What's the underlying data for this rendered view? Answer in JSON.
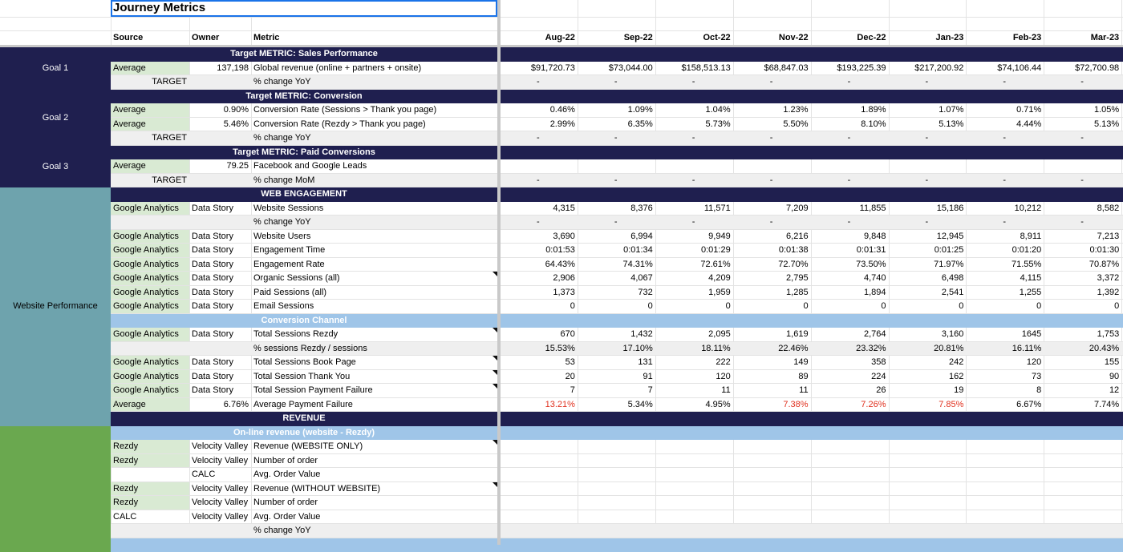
{
  "title": "Journey Metrics",
  "colors": {
    "navy": "#1f1f4f",
    "teal": "#6ea3ad",
    "green": "#6aa84f",
    "light_green": "#d9ead3",
    "gray_row": "#efefef",
    "sub_header": "#9fc5e8",
    "red_text": "#e0301e"
  },
  "headers": {
    "source": "Source",
    "owner": "Owner",
    "metric": "Metric",
    "months": [
      "Aug-22",
      "Sep-22",
      "Oct-22",
      "Nov-22",
      "Dec-22",
      "Jan-23",
      "Feb-23",
      "Mar-23"
    ]
  },
  "groups": [
    {
      "label": "Goal 1",
      "color": "navy"
    },
    {
      "label": "Goal 2",
      "color": "navy"
    },
    {
      "label": "Goal 3",
      "color": "navy"
    },
    {
      "label": "Website Performance",
      "color": "teal"
    },
    {
      "label": "",
      "color": "green"
    }
  ],
  "rows": [
    {
      "type": "section",
      "style": "navy",
      "label": "Target METRIC: Sales Performance"
    },
    {
      "type": "data",
      "source": "Average",
      "source_bg": "light_green",
      "owner": "137,198",
      "owner_align": "right",
      "metric": "Global revenue (online + partners + onsite)",
      "values": [
        "$91,720.73",
        "$73,044.00",
        "$158,513.13",
        "$68,847.03",
        "$193,225.39",
        "$217,200.92",
        "$74,106.44",
        "$72,700.98"
      ]
    },
    {
      "type": "target",
      "source": "TARGET",
      "metric": "% change YoY",
      "values": [
        "-",
        "-",
        "-",
        "-",
        "-",
        "-",
        "-",
        "-"
      ]
    },
    {
      "type": "section",
      "style": "navy",
      "label": "Target METRIC: Conversion"
    },
    {
      "type": "data",
      "source": "Average",
      "source_bg": "light_green",
      "owner": "0.90%",
      "owner_align": "right",
      "metric": "Conversion Rate (Sessions > Thank you page)",
      "values": [
        "0.46%",
        "1.09%",
        "1.04%",
        "1.23%",
        "1.89%",
        "1.07%",
        "0.71%",
        "1.05%"
      ]
    },
    {
      "type": "data",
      "source": "Average",
      "source_bg": "light_green",
      "owner": "5.46%",
      "owner_align": "right",
      "metric": "Conversion Rate (Rezdy > Thank you page)",
      "values": [
        "2.99%",
        "6.35%",
        "5.73%",
        "5.50%",
        "8.10%",
        "5.13%",
        "4.44%",
        "5.13%"
      ]
    },
    {
      "type": "target",
      "source": "TARGET",
      "metric": "% change YoY",
      "values": [
        "-",
        "-",
        "-",
        "-",
        "-",
        "-",
        "-",
        "-"
      ]
    },
    {
      "type": "section",
      "style": "navy",
      "label": "Target METRIC: Paid Conversions"
    },
    {
      "type": "data",
      "source": "Average",
      "source_bg": "light_green",
      "owner": "79.25",
      "owner_align": "right",
      "metric": "Facebook and Google Leads",
      "values": [
        "",
        "",
        "",
        "",
        "",
        "",
        "",
        ""
      ]
    },
    {
      "type": "target",
      "source": "TARGET",
      "metric": "% change MoM",
      "values": [
        "-",
        "-",
        "-",
        "-",
        "-",
        "-",
        "-",
        "-"
      ]
    },
    {
      "type": "section",
      "style": "navy",
      "label": "WEB ENGAGEMENT"
    },
    {
      "type": "data",
      "source": "Google Analytics",
      "source_bg": "light_green",
      "owner": "Data Story",
      "metric": "Website Sessions",
      "values": [
        "4,315",
        "8,376",
        "11,571",
        "7,209",
        "11,855",
        "15,186",
        "10,212",
        "8,582"
      ]
    },
    {
      "type": "target",
      "source": "",
      "metric": "% change YoY",
      "values": [
        "-",
        "-",
        "-",
        "-",
        "-",
        "-",
        "-",
        "-"
      ]
    },
    {
      "type": "data",
      "source": "Google Analytics",
      "source_bg": "light_green",
      "owner": "Data Story",
      "metric": "Website Users",
      "values": [
        "3,690",
        "6,994",
        "9,949",
        "6,216",
        "9,848",
        "12,945",
        "8,911",
        "7,213"
      ]
    },
    {
      "type": "data",
      "source": "Google Analytics",
      "source_bg": "light_green",
      "owner": "Data Story",
      "metric": "Engagement Time",
      "values": [
        "0:01:53",
        "0:01:34",
        "0:01:29",
        "0:01:38",
        "0:01:31",
        "0:01:25",
        "0:01:20",
        "0:01:30"
      ]
    },
    {
      "type": "data",
      "source": "Google Analytics",
      "source_bg": "light_green",
      "owner": "Data Story",
      "metric": "Engagement Rate",
      "values": [
        "64.43%",
        "74.31%",
        "72.61%",
        "72.70%",
        "73.50%",
        "71.97%",
        "71.55%",
        "70.87%"
      ]
    },
    {
      "type": "data",
      "source": "Google Analytics",
      "source_bg": "light_green",
      "owner": "Data Story",
      "metric": "Organic Sessions (all)",
      "note": true,
      "values": [
        "2,906",
        "4,067",
        "4,209",
        "2,795",
        "4,740",
        "6,498",
        "4,115",
        "3,372"
      ]
    },
    {
      "type": "data",
      "source": "Google Analytics",
      "source_bg": "light_green",
      "owner": "Data Story",
      "metric": "Paid Sessions (all)",
      "values": [
        "1,373",
        "732",
        "1,959",
        "1,285",
        "1,894",
        "2,541",
        "1,255",
        "1,392"
      ]
    },
    {
      "type": "data",
      "source": "Google Analytics",
      "source_bg": "light_green",
      "owner": "Data Story",
      "metric": "Email Sessions",
      "values": [
        "0",
        "0",
        "0",
        "0",
        "0",
        "0",
        "0",
        "0"
      ]
    },
    {
      "type": "section",
      "style": "light",
      "label": "Conversion Channel"
    },
    {
      "type": "data",
      "source": "Google Analytics",
      "source_bg": "light_green",
      "owner": "Data Story",
      "metric": "Total Sessions Rezdy",
      "note": true,
      "values": [
        "670",
        "1,432",
        "2,095",
        "1,619",
        "2,764",
        "3,160",
        "1645",
        "1,753"
      ]
    },
    {
      "type": "target",
      "source": "",
      "metric": "% sessions Rezdy / sessions",
      "values": [
        "15.53%",
        "17.10%",
        "18.11%",
        "22.46%",
        "23.32%",
        "20.81%",
        "16.11%",
        "20.43%"
      ]
    },
    {
      "type": "data",
      "source": "Google Analytics",
      "source_bg": "light_green",
      "owner": "Data Story",
      "metric": "Total Sessions Book Page",
      "note": true,
      "values": [
        "53",
        "131",
        "222",
        "149",
        "358",
        "242",
        "120",
        "155"
      ]
    },
    {
      "type": "data",
      "source": "Google Analytics",
      "source_bg": "light_green",
      "owner": "Data Story",
      "metric": "Total Session Thank You",
      "note": true,
      "values": [
        "20",
        "91",
        "120",
        "89",
        "224",
        "162",
        "73",
        "90"
      ]
    },
    {
      "type": "data",
      "source": "Google Analytics",
      "source_bg": "light_green",
      "owner": "Data Story",
      "metric": "Total Session Payment Failure",
      "note": true,
      "values": [
        "7",
        "7",
        "11",
        "11",
        "26",
        "19",
        "8",
        "12"
      ]
    },
    {
      "type": "data",
      "source": "Average",
      "source_bg": "light_green",
      "owner": "6.76%",
      "owner_align": "right",
      "metric": "Average Payment Failure",
      "values": [
        "13.21%",
        "5.34%",
        "4.95%",
        "7.38%",
        "7.26%",
        "7.85%",
        "6.67%",
        "7.74%"
      ],
      "red": [
        true,
        false,
        false,
        true,
        true,
        true,
        false,
        false
      ]
    },
    {
      "type": "section",
      "style": "navy",
      "label": "REVENUE"
    },
    {
      "type": "section",
      "style": "light",
      "label": "On-line revenue (website - Rezdy)"
    },
    {
      "type": "data",
      "source": "Rezdy",
      "source_bg": "light_green",
      "owner": "Velocity Valley",
      "metric": "Revenue (WEBSITE ONLY)",
      "note": true,
      "values": [
        "",
        "",
        "",
        "",
        "",
        "",
        "",
        ""
      ]
    },
    {
      "type": "data",
      "source": "Rezdy",
      "source_bg": "light_green",
      "owner": "Velocity Valley",
      "metric": "Number of order",
      "values": [
        "",
        "",
        "",
        "",
        "",
        "",
        "",
        ""
      ]
    },
    {
      "type": "data",
      "source": "",
      "owner": "CALC",
      "metric": "Avg. Order Value",
      "values": [
        "",
        "",
        "",
        "",
        "",
        "",
        "",
        ""
      ]
    },
    {
      "type": "data",
      "source": "Rezdy",
      "source_bg": "light_green",
      "owner": "Velocity Valley",
      "metric": "Revenue (WITHOUT WEBSITE)",
      "note": true,
      "values": [
        "",
        "",
        "",
        "",
        "",
        "",
        "",
        ""
      ]
    },
    {
      "type": "data",
      "source": "Rezdy",
      "source_bg": "light_green",
      "owner": "Velocity Valley",
      "metric": "Number of order",
      "values": [
        "",
        "",
        "",
        "",
        "",
        "",
        "",
        ""
      ]
    },
    {
      "type": "data",
      "source": "CALC",
      "owner": "Velocity Valley",
      "metric": "Avg. Order Value",
      "values": [
        "",
        "",
        "",
        "",
        "",
        "",
        "",
        ""
      ]
    },
    {
      "type": "target",
      "source": "",
      "metric": "% change YoY",
      "values": [
        "",
        "",
        "",
        "",
        "",
        "",
        "",
        ""
      ]
    },
    {
      "type": "section",
      "style": "light",
      "label": ""
    }
  ]
}
